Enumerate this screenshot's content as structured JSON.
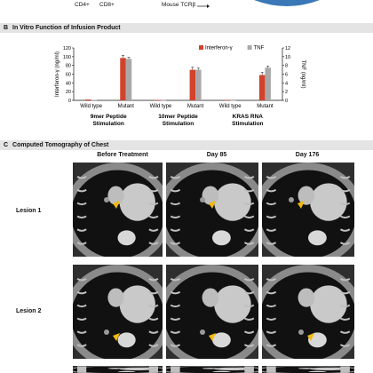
{
  "top": {
    "labels": [
      "CD4+",
      "CD8+",
      "Mouse TCRβ"
    ]
  },
  "panel_b": {
    "letter": "B",
    "title": "In Vitro Function of Infusion Product"
  },
  "panel_c": {
    "letter": "C",
    "title": "Computed Tomography of Chest",
    "columns": [
      "Before Treatment",
      "Day 85",
      "Day 176"
    ],
    "rows": [
      "Lesion 1",
      "Lesion 2"
    ]
  },
  "chart_data": {
    "type": "bar",
    "ylabel_left": "Interferon-γ (ng/ml)",
    "ylabel_right": "TNF (ng/ml)",
    "ylim_left": [
      0,
      120
    ],
    "ylim_right": [
      0,
      12
    ],
    "yticks_left": [
      0,
      20,
      40,
      60,
      80,
      100,
      120
    ],
    "yticks_right": [
      0,
      2,
      4,
      6,
      8,
      10,
      12
    ],
    "groups": [
      {
        "label": [
          "9mer Peptide",
          "Stimulation"
        ]
      },
      {
        "label": [
          "10mer Peptide",
          "Stimulation"
        ]
      },
      {
        "label": [
          "KRAS RNA",
          "Stimulation"
        ]
      }
    ],
    "categories": [
      "Wild type",
      "Mutant",
      "Wild type",
      "Mutant",
      "Wild type",
      "Mutant"
    ],
    "series": [
      {
        "name": "Interferon-γ",
        "color": "#d2432c",
        "axis": "left",
        "values": [
          2,
          97,
          1,
          70,
          0.5,
          58
        ]
      },
      {
        "name": "TNF",
        "color": "#a9a9a9",
        "axis": "right",
        "values": [
          0.1,
          9.5,
          0.05,
          7.0,
          0.02,
          7.5
        ]
      }
    ],
    "legend_position": "top-right"
  }
}
